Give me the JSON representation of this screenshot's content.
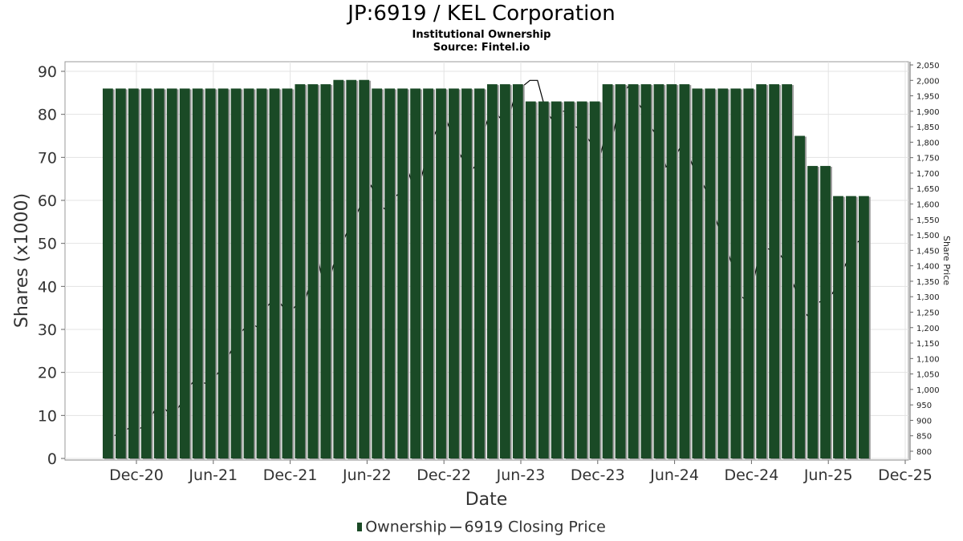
{
  "chart_data": {
    "type": "bar",
    "title": "JP:6919 / KEL Corporation",
    "subtitle": "Institutional Ownership",
    "source": "Source: Fintel.io",
    "xlabel": "Date",
    "ylabel": "Shares (x1000)",
    "y2label": "Share Price",
    "ylim": [
      0,
      90
    ],
    "y2lim": [
      800,
      2050
    ],
    "yticks": [
      0,
      10,
      20,
      30,
      40,
      50,
      60,
      70,
      80,
      90
    ],
    "y2ticks": [
      "800",
      "850",
      "900",
      "950",
      "1,000",
      "1,050",
      "1,100",
      "1,150",
      "1,200",
      "1,250",
      "1,300",
      "1,350",
      "1,400",
      "1,450",
      "1,500",
      "1,550",
      "1,600",
      "1,650",
      "1,700",
      "1,750",
      "1,800",
      "1,850",
      "1,900",
      "1,950",
      "2,000",
      "2,050"
    ],
    "xticks": [
      "Dec-20",
      "Jun-21",
      "Dec-21",
      "Jun-22",
      "Dec-22",
      "Jun-23",
      "Dec-23",
      "Jun-24",
      "Dec-24",
      "Jun-25",
      "Dec-25"
    ],
    "grid": true,
    "legend_position": "bottom",
    "series": [
      {
        "name": "Ownership",
        "color": "#1a4a26",
        "values": [
          86,
          86,
          86,
          86,
          86,
          86,
          86,
          86,
          86,
          86,
          86,
          86,
          86,
          86,
          86,
          87,
          87,
          87,
          88,
          88,
          88,
          86,
          86,
          86,
          86,
          86,
          86,
          86,
          86,
          86,
          87,
          87,
          87,
          83,
          83,
          83,
          83,
          83,
          83,
          87,
          87,
          87,
          87,
          87,
          87,
          87,
          86,
          86,
          86,
          86,
          86,
          87,
          87,
          87,
          75,
          68,
          68,
          61,
          61,
          61
        ]
      },
      {
        "name": "6919 Closing Price",
        "color": "#000000",
        "values": [
          850,
          860,
          875,
          870,
          880,
          915,
          960,
          930,
          920,
          960,
          1010,
          1040,
          1020,
          1030,
          1060,
          1100,
          1150,
          1190,
          1220,
          1200,
          1260,
          1290,
          1280,
          1240,
          1270,
          1260,
          1350,
          1420,
          1300,
          1400,
          1460,
          1520,
          1560,
          1620,
          1660,
          1600,
          1580,
          1620,
          1640,
          1700,
          1620,
          1720,
          1800,
          1860,
          1870,
          1800,
          1750,
          1700,
          1730,
          1840,
          1920,
          1880,
          1860,
          1950,
          1980,
          2000,
          2000,
          1910,
          1870,
          1900,
          1900,
          1850,
          1840,
          1800,
          1720,
          1830,
          1820,
          1950,
          1980,
          1940,
          1900,
          1850,
          1810,
          1720,
          1740,
          1790,
          1760,
          1690,
          1660,
          1600,
          1520,
          1460,
          1380,
          1300,
          1280,
          1400,
          1460,
          1450,
          1440,
          1400,
          1330,
          1260,
          1230,
          1280,
          1290,
          1310,
          1360,
          1420,
          1470,
          1490
        ]
      }
    ]
  }
}
